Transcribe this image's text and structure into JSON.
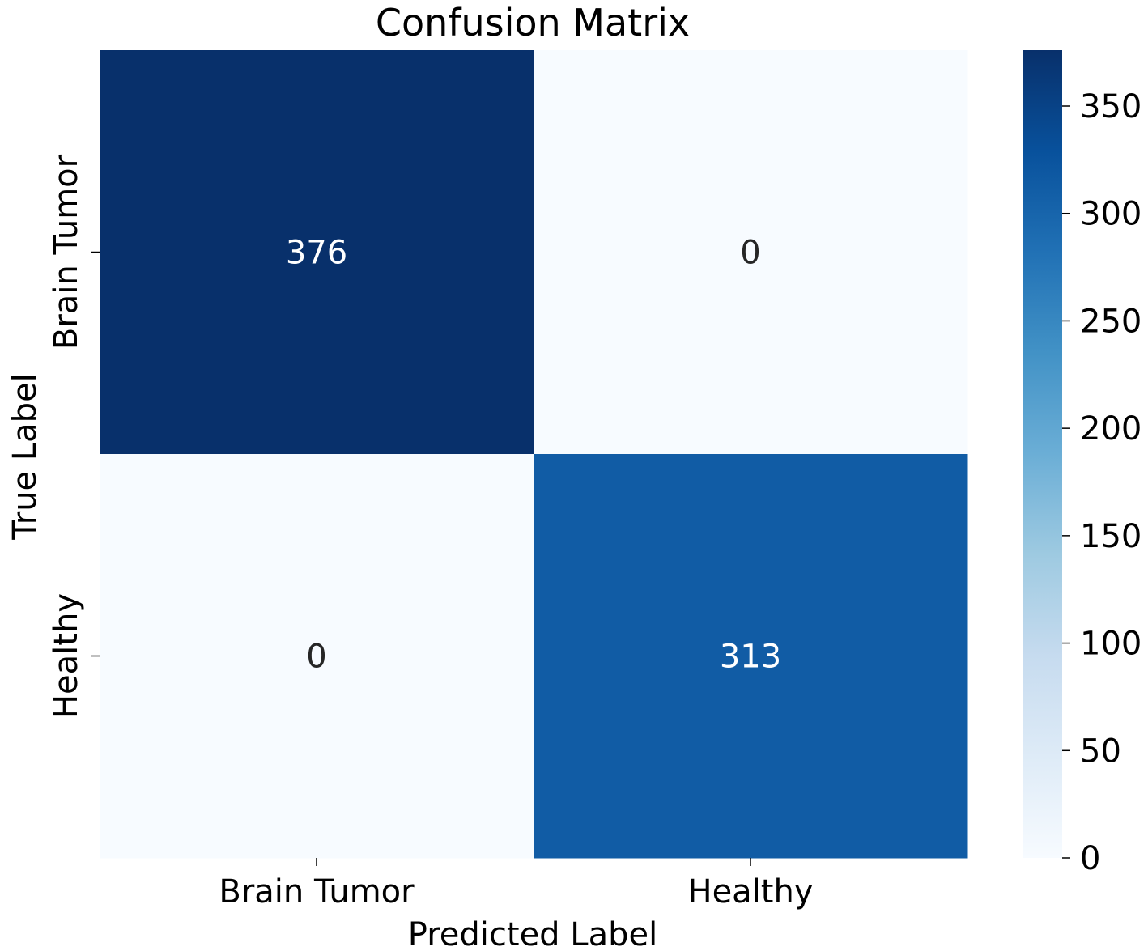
{
  "chart_data": {
    "type": "heatmap",
    "title": "Confusion Matrix",
    "xlabel": "Predicted Label",
    "ylabel": "True Label",
    "x_categories": [
      "Brain Tumor",
      "Healthy"
    ],
    "y_categories": [
      "Brain Tumor",
      "Healthy"
    ],
    "values": [
      [
        376,
        0
      ],
      [
        0,
        313
      ]
    ],
    "colormap": "Blues",
    "vmin": 0,
    "vmax": 376,
    "colorbar_ticks": [
      0,
      50,
      100,
      150,
      200,
      250,
      300,
      350
    ],
    "legend": "colorbar-right"
  }
}
